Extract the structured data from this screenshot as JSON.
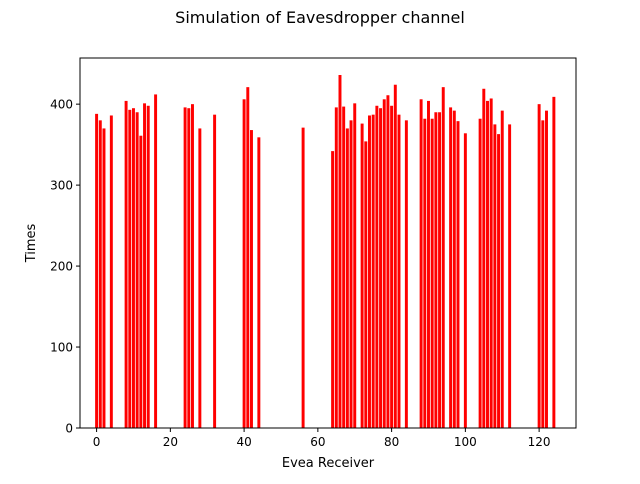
{
  "chart_data": {
    "type": "bar",
    "title": "Simulation of Eavesdropper channel",
    "xlabel": "Evea Receiver",
    "ylabel": "Times",
    "xlim": [
      -4.5,
      130
    ],
    "ylim": [
      0,
      457
    ],
    "x_ticks": [
      0,
      20,
      40,
      60,
      80,
      100,
      120
    ],
    "y_ticks": [
      0,
      100,
      200,
      300,
      400
    ],
    "bar_color": "#ff0000",
    "bar_width": 0.8,
    "grid": false,
    "legend": "none",
    "x": [
      0,
      1,
      2,
      4,
      8,
      9,
      10,
      11,
      12,
      13,
      14,
      16,
      24,
      25,
      26,
      28,
      32,
      40,
      41,
      42,
      44,
      56,
      64,
      65,
      66,
      67,
      68,
      69,
      70,
      72,
      73,
      74,
      75,
      76,
      77,
      78,
      79,
      80,
      81,
      82,
      84,
      88,
      89,
      90,
      91,
      92,
      93,
      94,
      96,
      97,
      98,
      100,
      104,
      105,
      106,
      107,
      108,
      109,
      110,
      112,
      120,
      121,
      122,
      124
    ],
    "values": [
      388,
      380,
      370,
      386,
      404,
      393,
      395,
      390,
      361,
      401,
      398,
      412,
      396,
      395,
      400,
      370,
      387,
      406,
      421,
      368,
      359,
      371,
      342,
      396,
      436,
      397,
      370,
      380,
      401,
      376,
      354,
      386,
      387,
      398,
      395,
      406,
      411,
      398,
      424,
      387,
      380,
      406,
      382,
      404,
      382,
      390,
      390,
      421,
      396,
      392,
      379,
      364,
      382,
      419,
      404,
      407,
      375,
      363,
      392,
      375,
      400,
      380,
      392,
      409
    ]
  }
}
